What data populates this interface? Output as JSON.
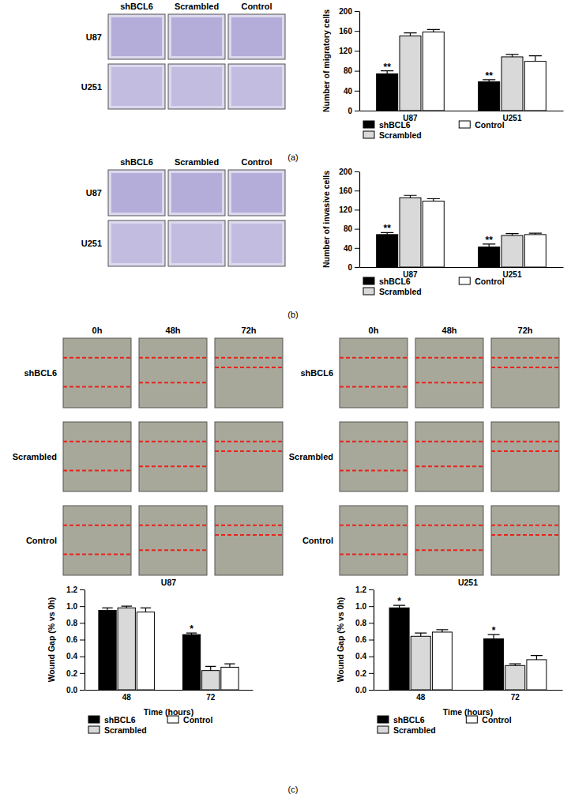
{
  "figure": {
    "panel_labels": [
      "(a)",
      "(b)",
      "(c)"
    ],
    "image_panels": [
      {
        "column_labels": [
          "shBCL6",
          "Scrambled",
          "Control"
        ],
        "row_labels": [
          "U87",
          "U251"
        ]
      },
      {
        "column_labels": [
          "shBCL6",
          "Scrambled",
          "Control"
        ],
        "row_labels": [
          "U87",
          "U251"
        ]
      },
      {
        "column_labels": [
          "0h",
          "48h",
          "72h"
        ],
        "row_labels": [
          "shBCL6",
          "Scrambled",
          "Control"
        ]
      },
      {
        "column_labels": [
          "0h",
          "48h",
          "72h"
        ],
        "row_labels": [
          "shBCL6",
          "Scrambled",
          "Control"
        ]
      }
    ]
  },
  "chart_data": [
    {
      "type": "bar",
      "ylabel": "Number of migratory cells",
      "categories": [
        "U87",
        "U251"
      ],
      "ylim": [
        0,
        200
      ],
      "yticks": [
        0,
        40,
        80,
        120,
        160,
        200
      ],
      "series": [
        {
          "name": "shBCL6",
          "color": "#000000",
          "values": [
            74,
            58
          ],
          "errors": [
            6,
            4
          ],
          "annotations": [
            "**",
            "**"
          ]
        },
        {
          "name": "Scrambled",
          "color": "#d9d9d9",
          "values": [
            150,
            108
          ],
          "errors": [
            6,
            5
          ]
        },
        {
          "name": "Control",
          "color": "#ffffff",
          "values": [
            158,
            99
          ],
          "errors": [
            5,
            11
          ]
        }
      ]
    },
    {
      "type": "bar",
      "ylabel": "Number of invasive cells",
      "categories": [
        "U87",
        "U251"
      ],
      "ylim": [
        0,
        200
      ],
      "yticks": [
        0,
        40,
        80,
        120,
        160,
        200
      ],
      "series": [
        {
          "name": "shBCL6",
          "color": "#000000",
          "values": [
            68,
            42
          ],
          "errors": [
            4,
            6
          ],
          "annotations": [
            "**",
            "**"
          ]
        },
        {
          "name": "Scrambled",
          "color": "#d9d9d9",
          "values": [
            145,
            66
          ],
          "errors": [
            5,
            4
          ]
        },
        {
          "name": "Control",
          "color": "#ffffff",
          "values": [
            138,
            68
          ],
          "errors": [
            5,
            3
          ]
        }
      ]
    },
    {
      "type": "bar",
      "title": "U87",
      "ylabel": "Wound Gap (% vs 0h)",
      "xlabel": "Time (hours)",
      "categories": [
        "48",
        "72"
      ],
      "ylim": [
        0,
        1.2
      ],
      "yticks": [
        {
          "value": 0,
          "label": "0.0"
        },
        0.2,
        0.4,
        0.6,
        0.8,
        {
          "value": 1,
          "label": "1.0"
        },
        1.2
      ],
      "series": [
        {
          "name": "shBCL6",
          "color": "#000000",
          "values": [
            0.95,
            0.66
          ],
          "errors": [
            0.03,
            0.02
          ],
          "annotations": [
            null,
            "*"
          ]
        },
        {
          "name": "Scrambled",
          "color": "#d9d9d9",
          "values": [
            0.98,
            0.23
          ],
          "errors": [
            0.02,
            0.05
          ]
        },
        {
          "name": "Control",
          "color": "#ffffff",
          "values": [
            0.93,
            0.27
          ],
          "errors": [
            0.05,
            0.04
          ]
        }
      ]
    },
    {
      "type": "bar",
      "title": "U251",
      "ylabel": "Wound Gap (% vs 0h)",
      "xlabel": "Time (hours)",
      "categories": [
        "48",
        "72"
      ],
      "ylim": [
        0,
        1.2
      ],
      "yticks": [
        {
          "value": 0,
          "label": "0.0"
        },
        0.2,
        0.4,
        0.6,
        0.8,
        {
          "value": 1,
          "label": "1.0"
        },
        1.2
      ],
      "series": [
        {
          "name": "shBCL6",
          "color": "#000000",
          "values": [
            0.98,
            0.61
          ],
          "errors": [
            0.03,
            0.05
          ],
          "annotations": [
            "*",
            "*"
          ]
        },
        {
          "name": "Scrambled",
          "color": "#d9d9d9",
          "values": [
            0.64,
            0.29
          ],
          "errors": [
            0.04,
            0.02
          ]
        },
        {
          "name": "Control",
          "color": "#ffffff",
          "values": [
            0.69,
            0.36
          ],
          "errors": [
            0.03,
            0.05
          ]
        }
      ]
    }
  ]
}
